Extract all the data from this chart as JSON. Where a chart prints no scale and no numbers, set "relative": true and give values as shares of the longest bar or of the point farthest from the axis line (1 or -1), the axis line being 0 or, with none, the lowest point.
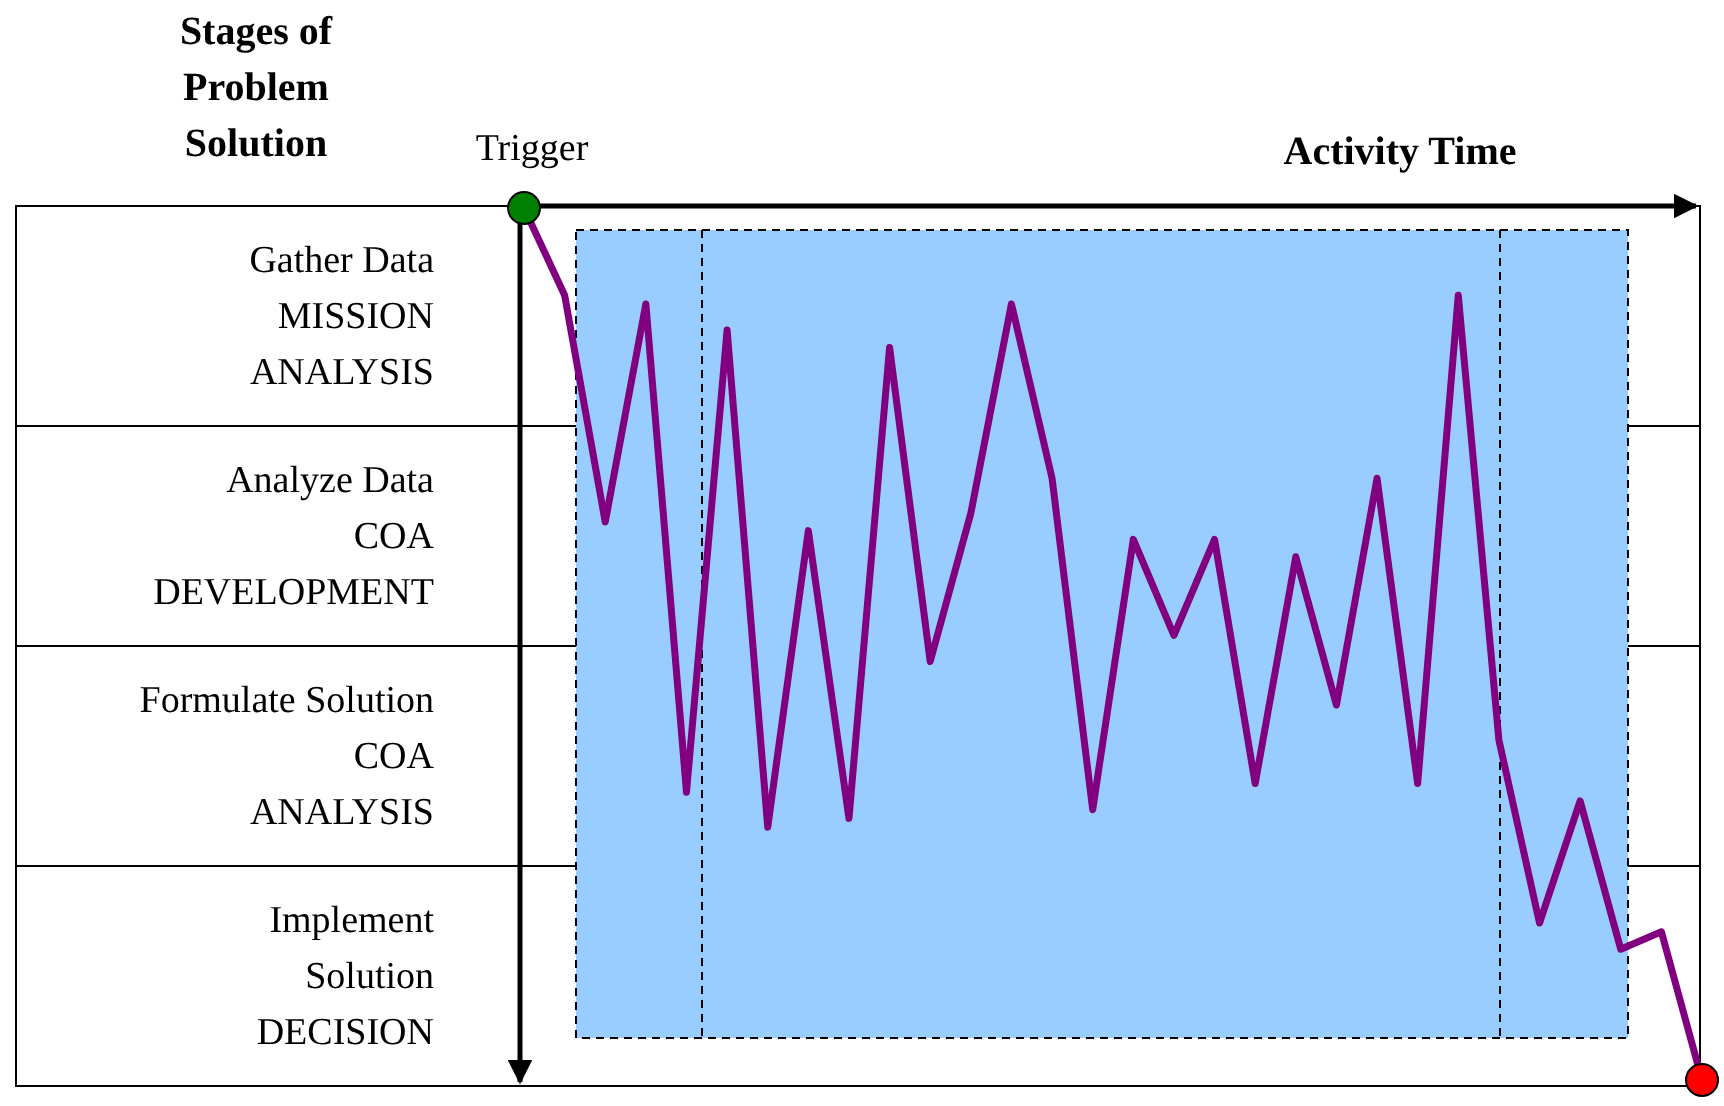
{
  "chart_data": {
    "type": "line",
    "relative": true,
    "xlabel": "Activity Time",
    "ylabel": "Stages of\nProblem\nSolution",
    "categories": [
      null,
      null,
      null,
      null,
      null,
      null,
      null,
      null,
      null,
      null,
      null,
      null,
      null,
      null,
      null,
      null,
      null,
      null,
      null,
      null,
      null,
      null,
      null,
      null,
      null,
      null,
      null,
      null,
      null,
      null
    ],
    "series": [
      {
        "color": "#800080",
        "values": [
          0,
          -0.1,
          -0.36,
          -0.11,
          -0.67,
          -0.14,
          -0.71,
          -0.37,
          -0.7,
          -0.16,
          -0.52,
          -0.35,
          -0.11,
          -0.31,
          -0.69,
          -0.38,
          -0.49,
          -0.38,
          -0.66,
          -0.4,
          -0.57,
          -0.31,
          -0.66,
          -0.1,
          -0.61,
          -0.82,
          -0.68,
          -0.85,
          -0.83,
          -1
        ]
      }
    ],
    "annotations": [
      "Gather Data\nMISSION\nANALYSIS",
      "Analyze Data\nCOA\nDEVELOPMENT",
      "Formulate Solution\nCOA\nANALYSIS",
      "Implement\nSolution\nDECISION",
      "Trigger"
    ]
  }
}
